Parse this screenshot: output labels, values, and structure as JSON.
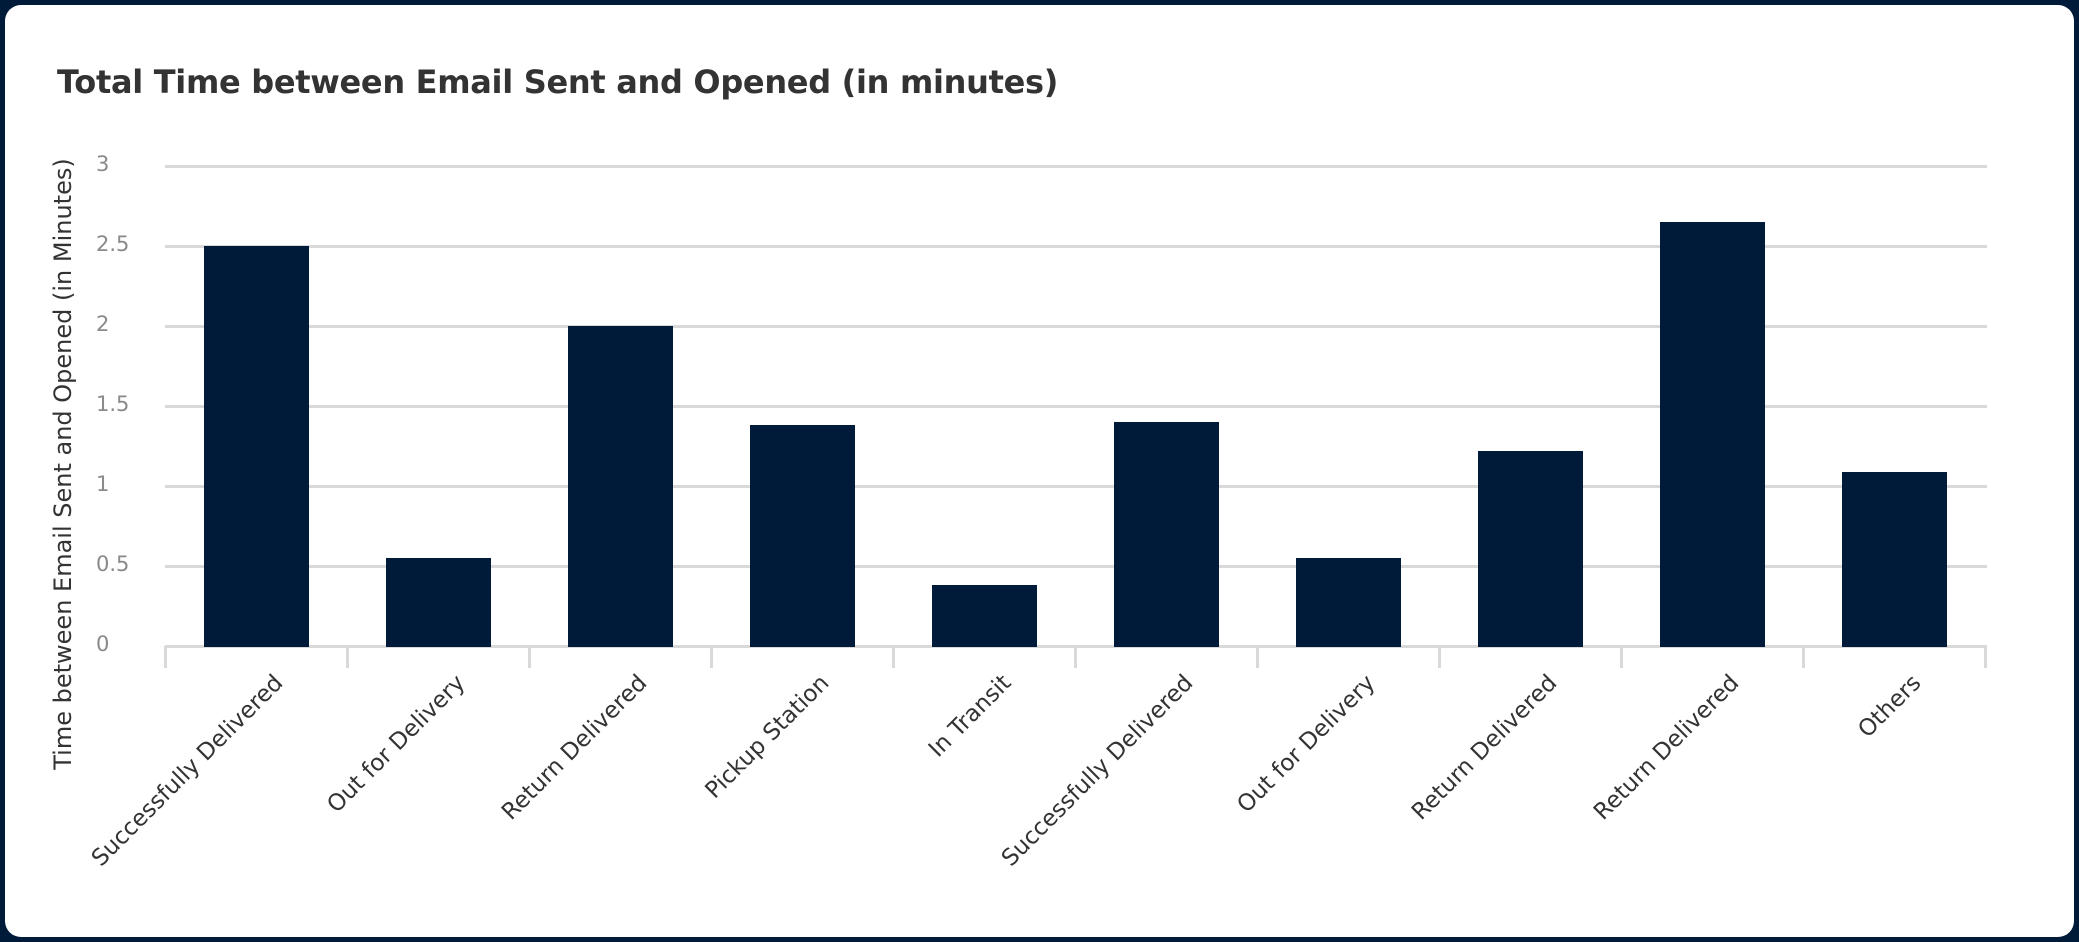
{
  "card": {
    "title": "Total Time between Email Sent and Opened (in minutes)"
  },
  "colors": {
    "bar": "#001b3a",
    "frame": "#001b3a",
    "gridline": "#d9d9d9",
    "title_text": "#333333",
    "tick_text": "#8a8a8a"
  },
  "chart_data": {
    "type": "bar",
    "title": "Total Time between Email Sent and Opened (in minutes)",
    "xlabel": "",
    "ylabel": "Time between Email Sent and Opened (in Minutes)",
    "ylim": [
      0,
      3
    ],
    "yticks": [
      "0",
      "0.5",
      "1",
      "1.5",
      "2",
      "2.5",
      "3"
    ],
    "grid": true,
    "legend": null,
    "categories": [
      "Successfully Delivered",
      "Out for Delivery",
      "Return Delivered",
      "Pickup Station",
      "In Transit",
      "Successfully Delivered",
      "Out for Delivery",
      "Return Delivered",
      "Return Delivered",
      "Others"
    ],
    "values": [
      2.5,
      0.55,
      2.0,
      1.38,
      0.38,
      1.4,
      0.55,
      1.22,
      2.65,
      1.09
    ]
  }
}
